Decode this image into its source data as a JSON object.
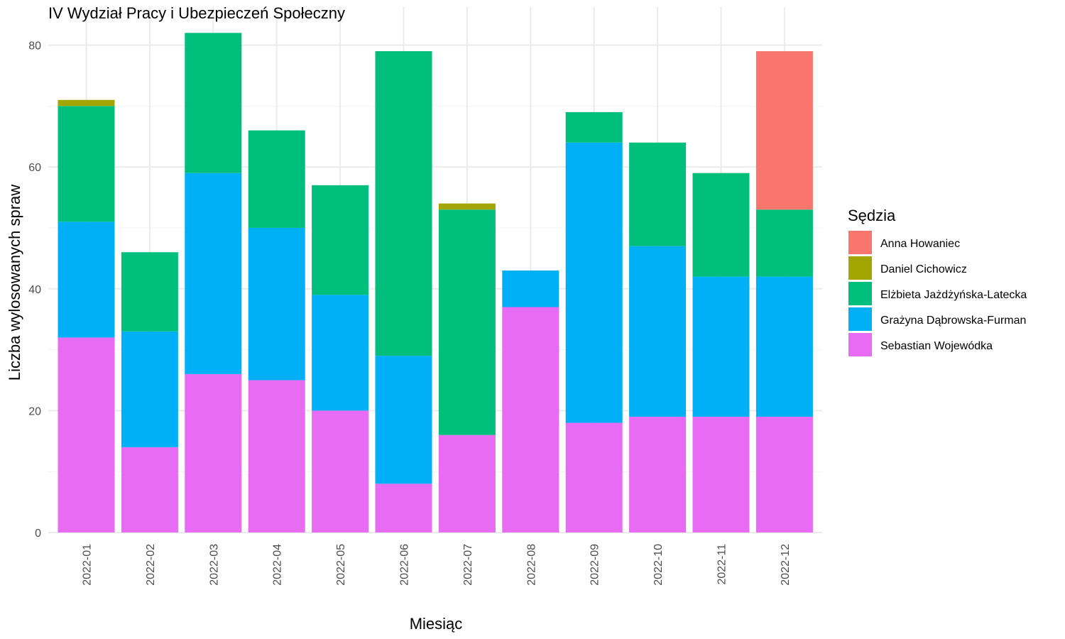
{
  "chart_data": {
    "type": "bar",
    "stacked": true,
    "title": "IV Wydział Pracy i Ubezpieczeń Społeczny",
    "xlabel": "Miesiąc",
    "ylabel": "Liczba wylosowanych spraw",
    "ylim": [
      0,
      82
    ],
    "yticks": [
      "0",
      "20",
      "40",
      "60",
      "80"
    ],
    "grid": true,
    "legend_title": "Sędzia",
    "legend_position": "right",
    "categories": [
      "2022-01",
      "2022-02",
      "2022-03",
      "2022-04",
      "2022-05",
      "2022-06",
      "2022-07",
      "2022-08",
      "2022-09",
      "2022-10",
      "2022-11",
      "2022-12"
    ],
    "series": [
      {
        "name": "Sebastian Wojewódka",
        "color": "#E76BF3",
        "values": [
          32,
          14,
          26,
          25,
          20,
          8,
          16,
          37,
          18,
          19,
          19,
          19
        ]
      },
      {
        "name": "Grażyna Dąbrowska-Furman",
        "color": "#00B0F6",
        "values": [
          19,
          19,
          33,
          25,
          19,
          21,
          0,
          6,
          46,
          28,
          23,
          23
        ]
      },
      {
        "name": "Elżbieta Jażdżyńska-Latecka",
        "color": "#00BF7D",
        "values": [
          19,
          13,
          23,
          16,
          18,
          50,
          37,
          0,
          5,
          17,
          17,
          11
        ]
      },
      {
        "name": "Daniel Cichowicz",
        "color": "#A3A500",
        "values": [
          1,
          0,
          0,
          0,
          0,
          0,
          1,
          0,
          0,
          0,
          0,
          0
        ]
      },
      {
        "name": "Anna Howaniec",
        "color": "#F8766D",
        "values": [
          0,
          0,
          0,
          0,
          0,
          0,
          0,
          0,
          0,
          0,
          0,
          26
        ]
      }
    ],
    "legend_order": [
      "Anna Howaniec",
      "Daniel Cichowicz",
      "Elżbieta Jażdżyńska-Latecka",
      "Grażyna Dąbrowska-Furman",
      "Sebastian Wojewódka"
    ]
  }
}
